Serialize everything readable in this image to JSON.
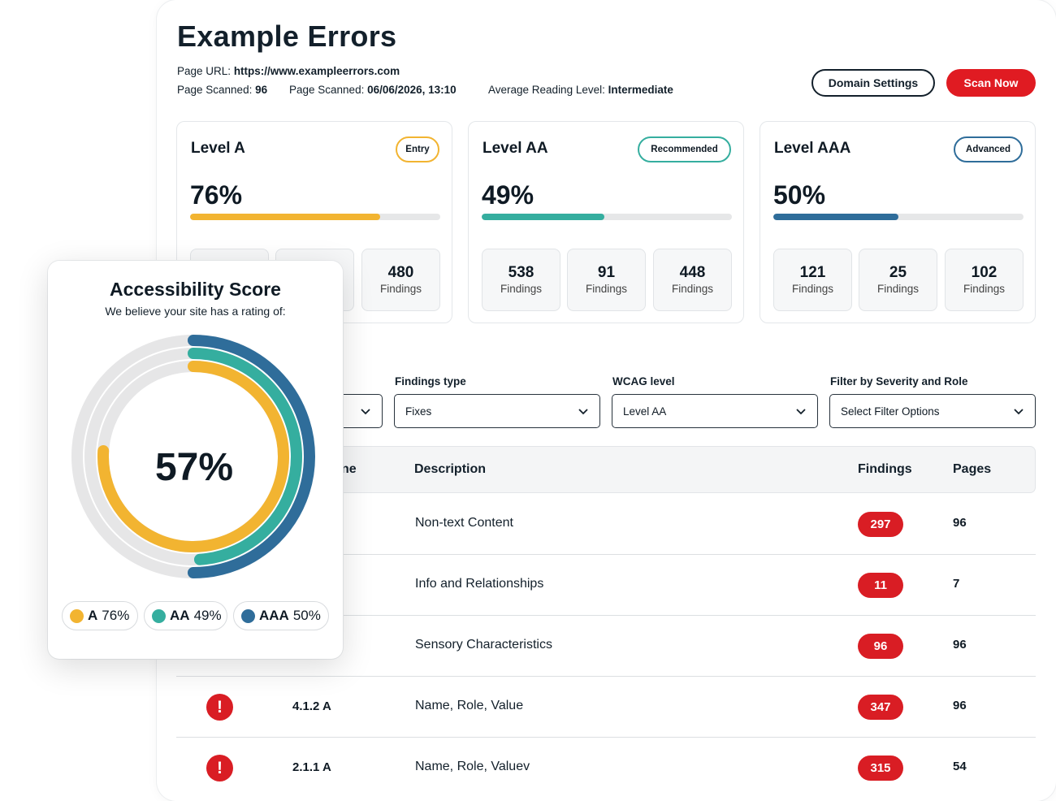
{
  "header": {
    "title": "Example Errors",
    "page_url_label": "Page URL:",
    "page_url": "https://www.exampleerrors.com",
    "pages_scanned_label": "Page Scanned:",
    "pages_scanned": "96",
    "last_scanned_label": "Page Scanned:",
    "last_scanned": "06/06/2026, 13:10",
    "reading_level_label": "Average Reading Level:",
    "reading_level": "Intermediate",
    "domain_settings_label": "Domain Settings",
    "scan_now_label": "Scan Now"
  },
  "levels": [
    {
      "title": "Level A",
      "badge": "Entry",
      "percent_text": "76%",
      "percent": 76,
      "color": "#f2b431",
      "badge_color": "#f2b431",
      "findings": [
        {
          "num": "",
          "label": ""
        },
        {
          "num": "",
          "label": ""
        },
        {
          "num": "480",
          "label": "Findings"
        }
      ]
    },
    {
      "title": "Level AA",
      "badge": "Recommended",
      "percent_text": "49%",
      "percent": 49,
      "color": "#35ae9f",
      "badge_color": "#35ae9f",
      "findings": [
        {
          "num": "538",
          "label": "Findings"
        },
        {
          "num": "91",
          "label": "Findings"
        },
        {
          "num": "448",
          "label": "Findings"
        }
      ]
    },
    {
      "title": "Level AAA",
      "badge": "Advanced",
      "percent_text": "50%",
      "percent": 50,
      "color": "#2f6d9a",
      "badge_color": "#2f6d9a",
      "findings": [
        {
          "num": "121",
          "label": "Findings"
        },
        {
          "num": "25",
          "label": "Findings"
        },
        {
          "num": "102",
          "label": "Findings"
        }
      ]
    }
  ],
  "filters": {
    "findings_type_label": "Findings type",
    "findings_type_value": "Fixes",
    "wcag_label": "WCAG level",
    "wcag_value": "Level AA",
    "severity_label": "Filter by Severity and Role",
    "severity_value": "Select Filter Options"
  },
  "table": {
    "columns": {
      "name_partial": "ne",
      "description": "Description",
      "findings": "Findings",
      "pages": "Pages"
    },
    "rows": [
      {
        "code": "",
        "description": "Non-text Content",
        "findings": "297",
        "pages": "96",
        "icon": false
      },
      {
        "code": "",
        "description": "Info and Relationships",
        "findings": "11",
        "pages": "7",
        "icon": false
      },
      {
        "code": "",
        "description": "Sensory Characteristics",
        "findings": "96",
        "pages": "96",
        "icon": false
      },
      {
        "code": "4.1.2 A",
        "description": "Name, Role, Value",
        "findings": "347",
        "pages": "96",
        "icon": true
      },
      {
        "code": "2.1.1 A",
        "description": "Name, Role, Valuev",
        "findings": "315",
        "pages": "54",
        "icon": true
      }
    ]
  },
  "score": {
    "title": "Accessibility Score",
    "subtitle": "We believe your site has a rating of:",
    "value_text": "57%",
    "rings": [
      {
        "name": "AAA",
        "percent": 50,
        "color": "#2f6d9a"
      },
      {
        "name": "AA",
        "percent": 49,
        "color": "#35ae9f"
      },
      {
        "name": "A",
        "percent": 76,
        "color": "#f2b431"
      }
    ],
    "legend": [
      {
        "name": "A",
        "value": "76%",
        "color": "#f2b431"
      },
      {
        "name": "AA",
        "value": "49%",
        "color": "#35ae9f"
      },
      {
        "name": "AAA",
        "value": "50%",
        "color": "#2f6d9a"
      }
    ]
  },
  "colors": {
    "brand_red": "#e01b22",
    "track_gray": "#e6e7e8"
  }
}
